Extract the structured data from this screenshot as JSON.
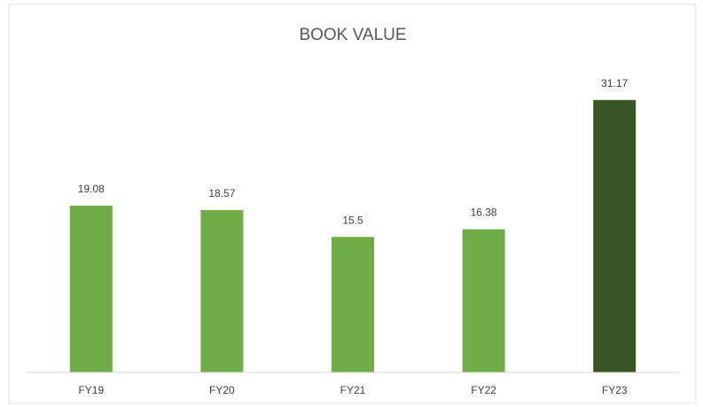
{
  "chart_data": {
    "type": "bar",
    "title": "BOOK VALUE",
    "categories": [
      "FY19",
      "FY20",
      "FY21",
      "FY22",
      "FY23"
    ],
    "values": [
      19.08,
      18.57,
      15.5,
      16.38,
      31.17
    ],
    "colors": [
      "#70ad47",
      "#70ad47",
      "#70ad47",
      "#70ad47",
      "#375623"
    ],
    "ylim": [
      0,
      35
    ],
    "grid": false
  }
}
